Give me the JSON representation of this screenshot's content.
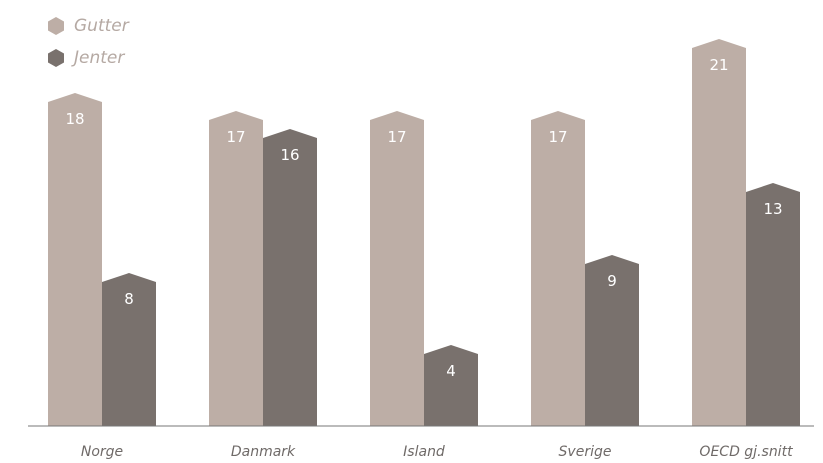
{
  "chart_data": {
    "type": "bar",
    "categories": [
      "Norge",
      "Danmark",
      "Island",
      "Sverige",
      "OECD gj.snitt"
    ],
    "series": [
      {
        "name": "Gutter",
        "values": [
          18,
          17,
          17,
          17,
          21
        ],
        "color": "#bdaea6"
      },
      {
        "name": "Jenter",
        "values": [
          8,
          16,
          4,
          9,
          13
        ],
        "color": "#79716d"
      }
    ],
    "legend_position": "top-left",
    "grid": false,
    "ylim": [
      0,
      22
    ]
  },
  "colors": {
    "gutter": "#bdaea6",
    "jenter": "#79716d",
    "axis": "#777777",
    "label_text": "#ffffff",
    "category_text": "#6f6a68",
    "legend_text": "#b5a9a3"
  },
  "icons": {
    "legend_marker": "hexagon"
  }
}
